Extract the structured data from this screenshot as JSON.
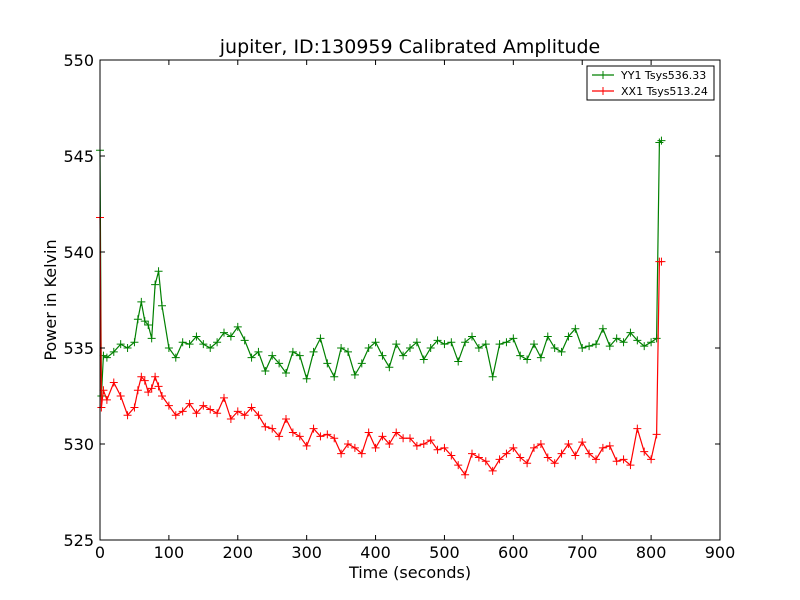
{
  "chart_data": {
    "type": "line",
    "title": "jupiter, ID:130959 Calibrated Amplitude",
    "xlabel": "Time (seconds)",
    "ylabel": "Power in Kelvin",
    "xlim": [
      0,
      900
    ],
    "ylim": [
      525,
      550
    ],
    "xticks": [
      0,
      100,
      200,
      300,
      400,
      500,
      600,
      700,
      800,
      900
    ],
    "yticks": [
      525,
      530,
      535,
      540,
      545,
      550
    ],
    "grid": false,
    "legend_position": "top-right",
    "marker": "+",
    "series": [
      {
        "name": "YY1 Tsys536.33",
        "color": "#008000",
        "x": [
          0,
          2,
          5,
          10,
          20,
          30,
          40,
          50,
          55,
          60,
          65,
          70,
          75,
          80,
          85,
          90,
          100,
          110,
          120,
          130,
          140,
          150,
          160,
          170,
          180,
          190,
          200,
          210,
          220,
          230,
          240,
          250,
          260,
          270,
          280,
          290,
          300,
          310,
          320,
          330,
          340,
          350,
          360,
          370,
          380,
          390,
          400,
          410,
          420,
          430,
          440,
          450,
          460,
          470,
          480,
          490,
          500,
          510,
          520,
          530,
          540,
          550,
          560,
          570,
          580,
          590,
          600,
          610,
          620,
          630,
          640,
          650,
          660,
          670,
          680,
          690,
          700,
          710,
          720,
          730,
          740,
          750,
          760,
          770,
          780,
          790,
          800,
          808,
          812,
          815
        ],
        "y": [
          545.3,
          532.5,
          534.6,
          534.5,
          534.8,
          535.2,
          535.0,
          535.3,
          536.5,
          537.4,
          536.4,
          536.2,
          535.5,
          538.3,
          539.0,
          537.2,
          535.0,
          534.5,
          535.3,
          535.2,
          535.6,
          535.2,
          535.0,
          535.3,
          535.8,
          535.6,
          536.1,
          535.4,
          534.5,
          534.8,
          533.8,
          534.6,
          534.2,
          533.7,
          534.8,
          534.6,
          533.4,
          534.8,
          535.5,
          534.2,
          533.5,
          535.0,
          534.8,
          533.6,
          534.2,
          535.0,
          535.3,
          534.6,
          534.0,
          535.2,
          534.6,
          535.0,
          535.3,
          534.4,
          535.0,
          535.4,
          535.2,
          535.3,
          534.3,
          535.3,
          535.6,
          535.0,
          535.2,
          533.5,
          535.2,
          535.3,
          535.5,
          534.6,
          534.4,
          535.2,
          534.5,
          535.6,
          535.0,
          534.8,
          535.6,
          536.0,
          535.0,
          535.1,
          535.2,
          536.0,
          535.1,
          535.5,
          535.3,
          535.8,
          535.4,
          535.1,
          535.3,
          535.5,
          545.7,
          545.8
        ]
      },
      {
        "name": "XX1 Tsys513.24",
        "color": "#ff0000",
        "x": [
          0,
          2,
          5,
          10,
          20,
          30,
          40,
          50,
          55,
          60,
          65,
          70,
          75,
          80,
          85,
          90,
          100,
          110,
          120,
          130,
          140,
          150,
          160,
          170,
          180,
          190,
          200,
          210,
          220,
          230,
          240,
          250,
          260,
          270,
          280,
          290,
          300,
          310,
          320,
          330,
          340,
          350,
          360,
          370,
          380,
          390,
          400,
          410,
          420,
          430,
          440,
          450,
          460,
          470,
          480,
          490,
          500,
          510,
          520,
          530,
          540,
          550,
          560,
          570,
          580,
          590,
          600,
          610,
          620,
          630,
          640,
          650,
          660,
          670,
          680,
          690,
          700,
          710,
          720,
          730,
          740,
          750,
          760,
          770,
          780,
          790,
          800,
          808,
          812,
          815
        ],
        "y": [
          541.8,
          531.9,
          532.8,
          532.3,
          533.2,
          532.5,
          531.5,
          531.9,
          532.8,
          533.5,
          533.3,
          532.7,
          532.9,
          533.5,
          533.0,
          532.5,
          532.0,
          531.5,
          531.7,
          532.1,
          531.6,
          532.0,
          531.8,
          531.6,
          532.4,
          531.3,
          531.7,
          531.5,
          531.9,
          531.5,
          530.9,
          530.8,
          530.4,
          531.3,
          530.6,
          530.4,
          529.9,
          530.8,
          530.4,
          530.5,
          530.3,
          529.5,
          530.0,
          529.8,
          529.5,
          530.6,
          529.8,
          530.4,
          530.0,
          530.6,
          530.3,
          530.3,
          529.9,
          530.0,
          530.2,
          529.7,
          529.8,
          529.4,
          528.9,
          528.4,
          529.5,
          529.3,
          529.1,
          528.6,
          529.2,
          529.5,
          529.8,
          529.3,
          529.0,
          529.8,
          530.0,
          529.3,
          529.0,
          529.5,
          530.0,
          529.4,
          530.1,
          529.5,
          529.2,
          529.8,
          529.9,
          529.1,
          529.2,
          528.9,
          530.8,
          529.6,
          529.2,
          530.5,
          539.5,
          539.5
        ]
      }
    ]
  }
}
